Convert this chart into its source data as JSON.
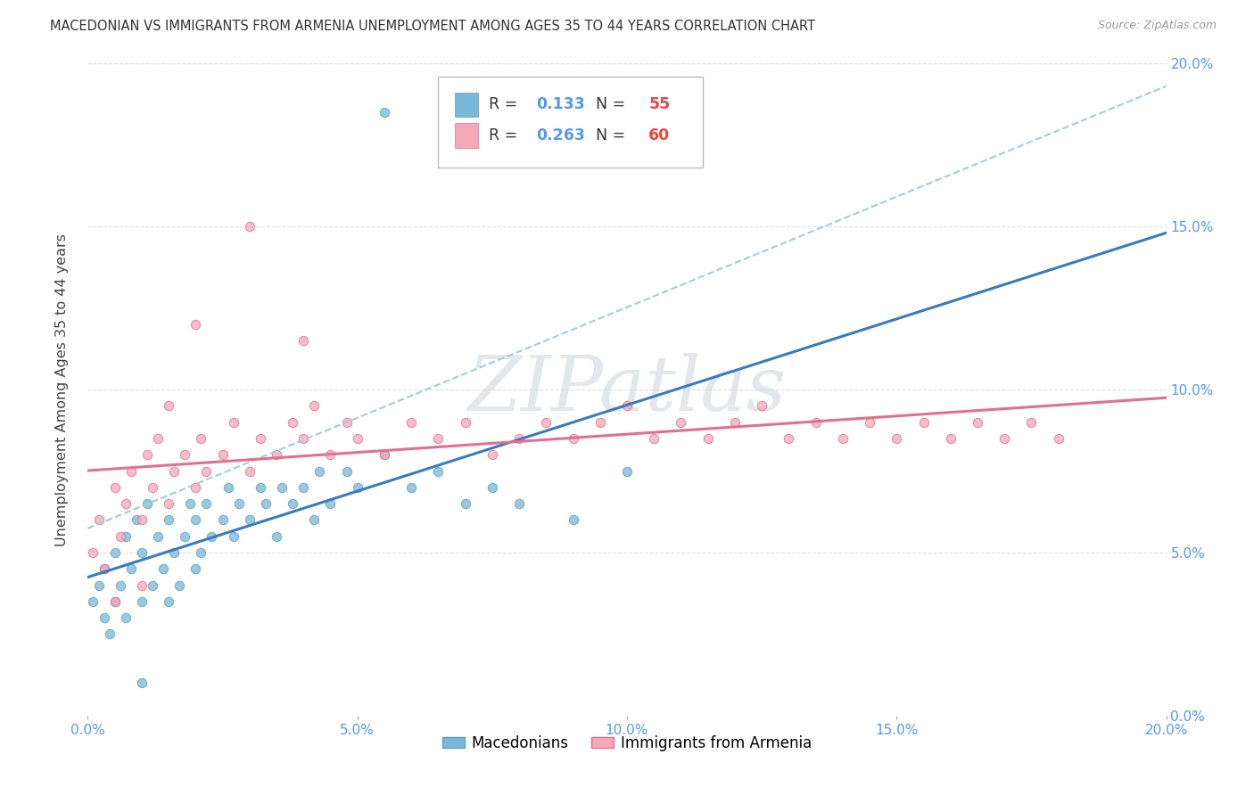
{
  "title": "MACEDONIAN VS IMMIGRANTS FROM ARMENIA UNEMPLOYMENT AMONG AGES 35 TO 44 YEARS CORRELATION CHART",
  "source": "Source: ZipAtlas.com",
  "ylabel": "Unemployment Among Ages 35 to 44 years",
  "xlim": [
    0.0,
    0.2
  ],
  "ylim": [
    0.0,
    0.2
  ],
  "xticks": [
    0.0,
    0.05,
    0.1,
    0.15,
    0.2
  ],
  "yticks": [
    0.0,
    0.05,
    0.1,
    0.15,
    0.2
  ],
  "xticklabels": [
    "0.0%",
    "5.0%",
    "10.0%",
    "15.0%",
    "20.0%"
  ],
  "yticklabels": [
    "0.0%",
    "5.0%",
    "10.0%",
    "15.0%",
    "20.0%"
  ],
  "macedonian_color": "#7ab8d9",
  "macedonian_edge": "#5a9fc0",
  "armenia_color": "#f5a8b8",
  "armenia_edge": "#e07090",
  "legend_R_mac": "0.133",
  "legend_N_mac": "55",
  "legend_R_arm": "0.263",
  "legend_N_arm": "60",
  "trend_mac_color": "#7ab8d9",
  "trend_mac_dash_color": "#a0cce0",
  "trend_arm_color": "#e07090",
  "r_text_color": "#5599ee",
  "n_text_color": "#ee4444",
  "tick_color": "#5599ee",
  "background_color": "#ffffff",
  "grid_color": "#dddddd",
  "watermark_color": "#d0d8e0"
}
